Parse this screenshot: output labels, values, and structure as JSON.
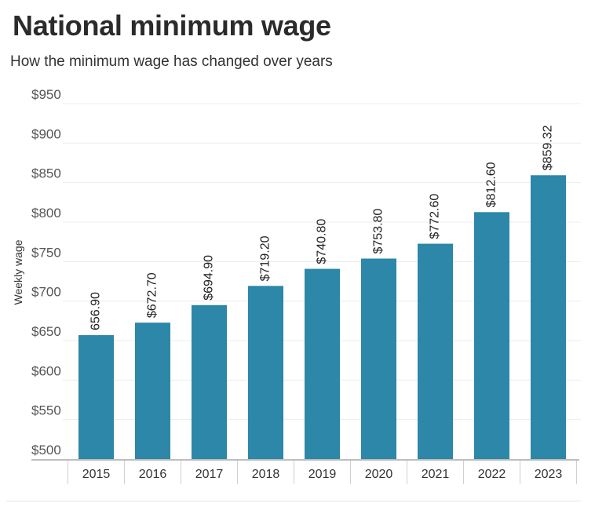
{
  "header": {
    "title": "National minimum wage",
    "subtitle": "How the minimum wage has changed over years"
  },
  "chart_data": {
    "type": "bar",
    "categories": [
      "2015",
      "2016",
      "2017",
      "2018",
      "2019",
      "2020",
      "2021",
      "2022",
      "2023"
    ],
    "values": [
      656.9,
      672.7,
      694.9,
      719.2,
      740.8,
      753.8,
      772.6,
      812.6,
      859.32
    ],
    "data_labels": [
      "656.90",
      "$672.70",
      "$694.90",
      "$719.20",
      "$740.80",
      "$753.80",
      "$772.60",
      "$812.60",
      "$859.32"
    ],
    "ylabel": "Weekly wage",
    "xlabel": "",
    "ylim": [
      500,
      950
    ],
    "yticks": [
      500,
      550,
      600,
      650,
      700,
      750,
      800,
      850,
      900,
      950
    ],
    "ytick_labels": [
      "$500",
      "$550",
      "$600",
      "$650",
      "$700",
      "$750",
      "$800",
      "$850",
      "$900",
      "$950"
    ],
    "grid": true,
    "bar_color": "#2c87a8"
  }
}
